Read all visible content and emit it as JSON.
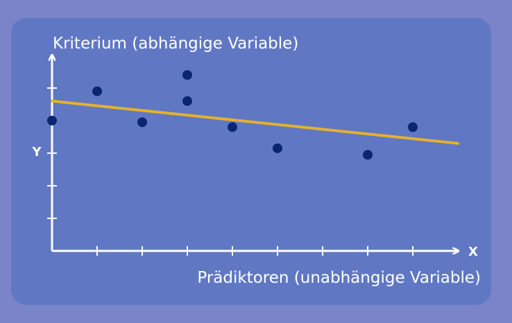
{
  "chart_data": {
    "type": "scatter",
    "ylabel": "Kriterium (abhängige Variable)",
    "xlabel": "Prädiktoren (unabhängige Variable)",
    "x_axis_letter": "X",
    "y_axis_letter": "Y",
    "xlim": [
      0,
      9
    ],
    "ylim": [
      0,
      5
    ],
    "x_ticks": [
      0,
      1,
      2,
      3,
      4,
      5,
      6,
      7,
      8
    ],
    "y_ticks": [
      0,
      1,
      2,
      3,
      4,
      5
    ],
    "points": [
      {
        "x": 0,
        "y": 4.0
      },
      {
        "x": 1,
        "y": 4.9
      },
      {
        "x": 2,
        "y": 3.95
      },
      {
        "x": 3,
        "y": 5.4
      },
      {
        "x": 3,
        "y": 4.6
      },
      {
        "x": 4,
        "y": 3.8
      },
      {
        "x": 5,
        "y": 3.15
      },
      {
        "x": 7,
        "y": 2.95
      },
      {
        "x": 8,
        "y": 3.8
      }
    ],
    "regression_line": {
      "x": [
        0,
        9
      ],
      "y": [
        4.6,
        3.3
      ]
    },
    "colors": {
      "background": "#7b84c9",
      "panel": "#6078c3",
      "axis": "#ffffff",
      "points": "#0a2670",
      "line": "#e5b12f"
    }
  }
}
